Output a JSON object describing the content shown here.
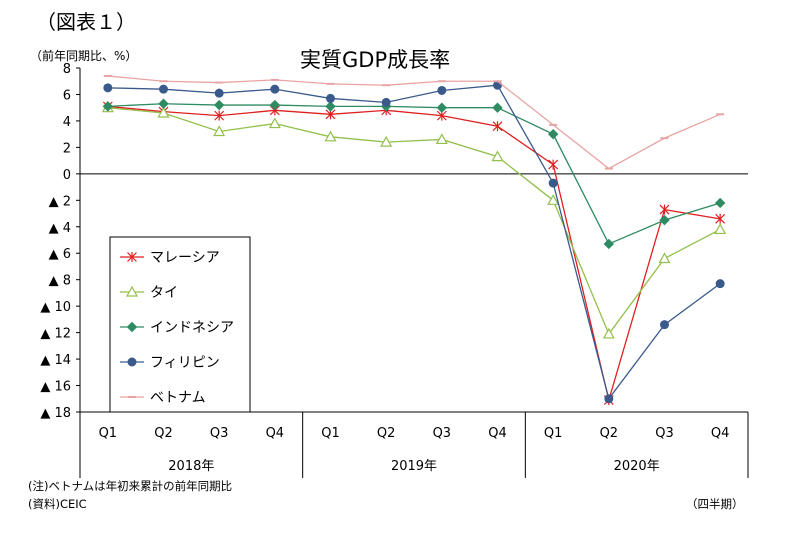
{
  "figure_label": "（図表１）",
  "unit_label": "（前年同期比、%）",
  "notes": {
    "note": "(注)ベトナムは年初来累計の前年同期比",
    "source": "(資料)CEIC",
    "period": "（四半期）"
  },
  "chart_data": {
    "type": "line",
    "title": "実質GDP成長率",
    "ylabel": "（前年同期比、%）",
    "xlabel": "（四半期）",
    "ylim": [
      -18,
      8
    ],
    "y_ticks": [
      8,
      6,
      4,
      2,
      0,
      -2,
      -4,
      -6,
      -8,
      -10,
      -12,
      -14,
      -16,
      -18
    ],
    "y_tick_labels": [
      "8",
      "6",
      "4",
      "2",
      "0",
      "▲ 2",
      "▲ 4",
      "▲ 6",
      "▲ 8",
      "▲ 10",
      "▲ 12",
      "▲ 14",
      "▲ 16",
      "▲ 18"
    ],
    "categories": [
      "Q1",
      "Q2",
      "Q3",
      "Q4",
      "Q1",
      "Q2",
      "Q3",
      "Q4",
      "Q1",
      "Q2",
      "Q3",
      "Q4"
    ],
    "year_groups": [
      {
        "label": "2018年",
        "span": 4
      },
      {
        "label": "2019年",
        "span": 4
      },
      {
        "label": "2020年",
        "span": 4
      }
    ],
    "grid": false,
    "legend_position": "left-center",
    "series": [
      {
        "name": "マレーシア",
        "color": "#e02020",
        "marker": "asterisk",
        "values": [
          5.1,
          4.7,
          4.4,
          4.8,
          4.5,
          4.8,
          4.4,
          3.6,
          0.7,
          -17.1,
          -2.7,
          -3.4
        ]
      },
      {
        "name": "タイ",
        "color": "#92c04c",
        "marker": "triangle",
        "values": [
          5.0,
          4.6,
          3.2,
          3.8,
          2.8,
          2.4,
          2.6,
          1.3,
          -2.0,
          -12.1,
          -6.4,
          -4.2
        ]
      },
      {
        "name": "インドネシア",
        "color": "#2e8b62",
        "marker": "diamond",
        "values": [
          5.1,
          5.3,
          5.2,
          5.2,
          5.1,
          5.1,
          5.0,
          5.0,
          3.0,
          -5.3,
          -3.5,
          -2.2
        ]
      },
      {
        "name": "フィリピン",
        "color": "#3a5a8c",
        "marker": "circle",
        "values": [
          6.5,
          6.4,
          6.1,
          6.4,
          5.7,
          5.4,
          6.3,
          6.7,
          -0.7,
          -17.0,
          -11.4,
          -8.3
        ]
      },
      {
        "name": "ベトナム",
        "color": "#e8a4a4",
        "marker": "dash",
        "values": [
          7.4,
          7.0,
          6.9,
          7.1,
          6.8,
          6.7,
          7.0,
          7.0,
          3.7,
          0.4,
          2.7,
          4.5
        ]
      }
    ]
  }
}
